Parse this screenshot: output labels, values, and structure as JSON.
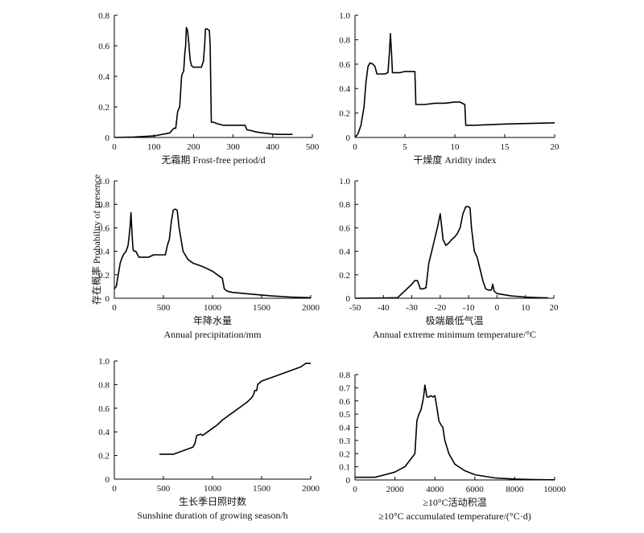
{
  "ylabel": "存在概率 Probability of presence",
  "chart_data": [
    {
      "type": "line",
      "xlabel": "无霜期  Frost-free period/d",
      "xlim": [
        0,
        500
      ],
      "ylim": [
        0,
        0.8
      ],
      "xticks": [
        0,
        100,
        200,
        300,
        400,
        500
      ],
      "yticks": [
        0,
        0.2,
        0.4,
        0.6,
        0.8
      ],
      "x": [
        0,
        50,
        100,
        130,
        140,
        150,
        155,
        160,
        165,
        170,
        172,
        175,
        178,
        180,
        182,
        185,
        188,
        190,
        192,
        195,
        200,
        210,
        220,
        225,
        228,
        230,
        235,
        240,
        242,
        245,
        250,
        260,
        275,
        300,
        320,
        330,
        335,
        345,
        360,
        380,
        400,
        420,
        450
      ],
      "y": [
        0,
        0.003,
        0.01,
        0.025,
        0.03,
        0.06,
        0.06,
        0.17,
        0.2,
        0.4,
        0.42,
        0.43,
        0.55,
        0.6,
        0.72,
        0.7,
        0.62,
        0.55,
        0.5,
        0.47,
        0.46,
        0.46,
        0.46,
        0.5,
        0.6,
        0.71,
        0.71,
        0.7,
        0.6,
        0.1,
        0.1,
        0.09,
        0.08,
        0.08,
        0.08,
        0.08,
        0.05,
        0.045,
        0.035,
        0.028,
        0.022,
        0.02,
        0.02
      ]
    },
    {
      "type": "line",
      "xlabel": "干燥度  Aridity index",
      "xlim": [
        0,
        20
      ],
      "ylim": [
        0,
        1.0
      ],
      "xticks": [
        0,
        5,
        10,
        15,
        20
      ],
      "yticks": [
        0,
        0.2,
        0.4,
        0.6,
        0.8,
        1.0
      ],
      "x": [
        0,
        0.3,
        0.6,
        0.9,
        1.1,
        1.3,
        1.5,
        1.8,
        2.0,
        2.2,
        2.5,
        3.0,
        3.3,
        3.45,
        3.55,
        3.65,
        3.75,
        4.0,
        4.5,
        5.0,
        5.5,
        6.0,
        6.1,
        7.0,
        8.0,
        9.0,
        10.0,
        10.5,
        11.0,
        11.1,
        11.3,
        12.0,
        15.0,
        20.0
      ],
      "y": [
        0,
        0.03,
        0.1,
        0.25,
        0.45,
        0.58,
        0.61,
        0.6,
        0.58,
        0.52,
        0.52,
        0.52,
        0.53,
        0.7,
        0.85,
        0.7,
        0.53,
        0.53,
        0.53,
        0.54,
        0.54,
        0.54,
        0.27,
        0.27,
        0.28,
        0.28,
        0.29,
        0.29,
        0.27,
        0.1,
        0.1,
        0.1,
        0.11,
        0.12
      ]
    },
    {
      "type": "line",
      "xlabel": "年降水量",
      "xlabel2": "Annual precipitation/mm",
      "xlim": [
        0,
        2000
      ],
      "ylim": [
        0,
        1.0
      ],
      "xticks": [
        0,
        500,
        1000,
        1500,
        2000
      ],
      "yticks": [
        0,
        0.2,
        0.4,
        0.6,
        0.8,
        1.0
      ],
      "x": [
        0,
        20,
        40,
        60,
        80,
        100,
        120,
        140,
        160,
        170,
        180,
        190,
        200,
        220,
        250,
        300,
        350,
        400,
        450,
        500,
        520,
        540,
        560,
        580,
        600,
        620,
        640,
        660,
        700,
        750,
        800,
        900,
        1000,
        1050,
        1100,
        1120,
        1150,
        1200,
        1400,
        1600,
        1800,
        2000
      ],
      "y": [
        0.08,
        0.1,
        0.2,
        0.3,
        0.35,
        0.38,
        0.4,
        0.45,
        0.6,
        0.73,
        0.55,
        0.42,
        0.4,
        0.4,
        0.35,
        0.35,
        0.35,
        0.37,
        0.37,
        0.37,
        0.37,
        0.45,
        0.5,
        0.65,
        0.75,
        0.76,
        0.75,
        0.6,
        0.4,
        0.33,
        0.3,
        0.27,
        0.23,
        0.2,
        0.17,
        0.08,
        0.06,
        0.05,
        0.035,
        0.02,
        0.01,
        0.005
      ]
    },
    {
      "type": "line",
      "xlabel": "极端最低气温",
      "xlabel2": "Annual extreme minimum temperature/°C",
      "xlim": [
        -50,
        20
      ],
      "ylim": [
        0,
        1.0
      ],
      "xticks": [
        -50,
        -40,
        -30,
        -20,
        -10,
        0,
        10,
        20
      ],
      "yticks": [
        0,
        0.2,
        0.4,
        0.6,
        0.8,
        1.0
      ],
      "x": [
        -50,
        -40,
        -35,
        -30,
        -29,
        -28,
        -27,
        -26,
        -25,
        -24,
        -23,
        -22,
        -21,
        -20,
        -19,
        -18,
        -17,
        -16,
        -15,
        -14,
        -13,
        -12,
        -11,
        -10,
        -9.5,
        -9,
        -8,
        -7,
        -6,
        -5,
        -4,
        -3,
        -2,
        -1.5,
        -1,
        0,
        5,
        10,
        15,
        18
      ],
      "y": [
        0,
        0.002,
        0.005,
        0.12,
        0.15,
        0.15,
        0.08,
        0.08,
        0.09,
        0.3,
        0.4,
        0.5,
        0.6,
        0.72,
        0.5,
        0.45,
        0.47,
        0.5,
        0.52,
        0.55,
        0.6,
        0.72,
        0.78,
        0.78,
        0.77,
        0.6,
        0.4,
        0.35,
        0.25,
        0.15,
        0.08,
        0.07,
        0.07,
        0.12,
        0.06,
        0.04,
        0.02,
        0.01,
        0.005,
        0.003
      ]
    },
    {
      "type": "line",
      "xlabel": "生长季日照时数",
      "xlabel2": "Sunshine duration of growing season/h",
      "xlim": [
        0,
        2000
      ],
      "ylim": [
        0,
        1.0
      ],
      "xticks": [
        0,
        500,
        1000,
        1500,
        2000
      ],
      "yticks": [
        0,
        0.2,
        0.4,
        0.6,
        0.8,
        1.0
      ],
      "x": [
        460,
        600,
        800,
        820,
        840,
        880,
        900,
        950,
        1000,
        1050,
        1100,
        1200,
        1300,
        1350,
        1400,
        1420,
        1430,
        1450,
        1460,
        1500,
        1600,
        1700,
        1800,
        1900,
        1950,
        2000
      ],
      "y": [
        0.21,
        0.21,
        0.27,
        0.3,
        0.37,
        0.38,
        0.37,
        0.4,
        0.43,
        0.46,
        0.5,
        0.56,
        0.62,
        0.65,
        0.69,
        0.72,
        0.75,
        0.75,
        0.8,
        0.83,
        0.86,
        0.89,
        0.92,
        0.95,
        0.98,
        0.98
      ]
    },
    {
      "type": "line",
      "xlabel": "≥10°C活动积温",
      "xlabel2": "≥10°C accumulated temperature/(°C·d)",
      "xlim": [
        0,
        10000
      ],
      "ylim": [
        0,
        0.8
      ],
      "xticks": [
        0,
        2000,
        4000,
        6000,
        8000,
        10000
      ],
      "yticks": [
        0,
        0.1,
        0.2,
        0.3,
        0.4,
        0.5,
        0.6,
        0.7,
        0.8
      ],
      "x": [
        0,
        1000,
        1500,
        2000,
        2500,
        3000,
        3100,
        3200,
        3300,
        3400,
        3450,
        3500,
        3550,
        3600,
        3700,
        3800,
        3900,
        4000,
        4100,
        4200,
        4300,
        4400,
        4500,
        4700,
        5000,
        5500,
        6000,
        7000,
        8000,
        9000,
        10000
      ],
      "y": [
        0.02,
        0.02,
        0.04,
        0.06,
        0.1,
        0.2,
        0.45,
        0.5,
        0.53,
        0.6,
        0.65,
        0.72,
        0.68,
        0.63,
        0.63,
        0.64,
        0.63,
        0.64,
        0.55,
        0.45,
        0.42,
        0.4,
        0.3,
        0.2,
        0.12,
        0.07,
        0.04,
        0.015,
        0.007,
        0.003,
        0.001
      ]
    }
  ]
}
